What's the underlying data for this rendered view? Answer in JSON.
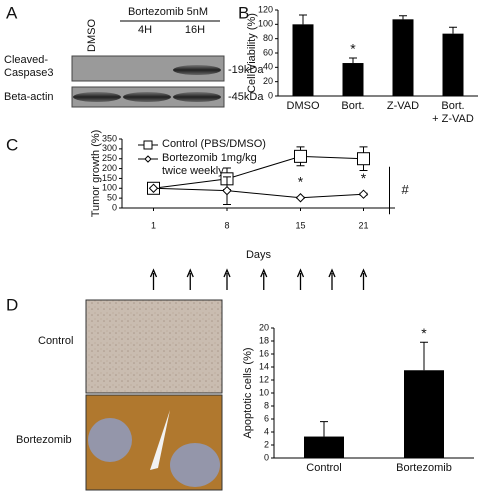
{
  "panel_labels": [
    "A",
    "B",
    "C",
    "D"
  ],
  "blot": {
    "treatment": "Bortezomib 5nM",
    "lanes": [
      "DMSO",
      "4H",
      "16H"
    ],
    "rows": [
      {
        "name": "Cleaved-\nCaspase3",
        "size": "-19kDa"
      },
      {
        "name": "Beta-actin",
        "size": "-45kDa"
      }
    ]
  },
  "micrographs": [
    "Control",
    "Bortezomib"
  ],
  "chart_data": [
    {
      "type": "bar",
      "y_label": "Cell Viability (%)",
      "categories": [
        "DMSO",
        "Bort.",
        "Z-VAD",
        "Bort.\n+ Z-VAD"
      ],
      "values": [
        100,
        46,
        107,
        87
      ],
      "errors": [
        13,
        7,
        5,
        9
      ],
      "significance": [
        null,
        "*",
        null,
        null
      ],
      "color": "#000000",
      "ylim": [
        0,
        120
      ],
      "yticks": [
        0,
        20,
        40,
        60,
        80,
        100,
        120
      ]
    },
    {
      "type": "line",
      "y_label": "Tumor growth (%)",
      "x_label": "Days",
      "x": [
        1,
        8,
        15,
        21
      ],
      "xlim": [
        -2,
        24
      ],
      "xticks": [
        1,
        8,
        15,
        21
      ],
      "ylim": [
        0,
        350
      ],
      "yticks": [
        0,
        50,
        100,
        150,
        200,
        250,
        300,
        350
      ],
      "series": [
        {
          "name": "Control (PBS/DMSO)",
          "color": "#000000",
          "marker": "square",
          "values": [
            100,
            148,
            262,
            250
          ],
          "errors": [
            0,
            55,
            48,
            60
          ]
        },
        {
          "name": "Bortezomib 1mg/kg\ntwice weekly",
          "color": "#000000",
          "marker": "diamond",
          "values": [
            100,
            88,
            52,
            70
          ],
          "errors": [
            0,
            70,
            4,
            5
          ],
          "significance": [
            null,
            null,
            "*",
            "*"
          ]
        }
      ],
      "annotation": "#",
      "dosing_days": [
        1,
        4.5,
        8,
        11.5,
        15,
        18,
        21
      ]
    },
    {
      "type": "bar",
      "y_label": "Apoptotic cells (%)",
      "categories": [
        "Control",
        "Bortezomib"
      ],
      "values": [
        3.3,
        13.5
      ],
      "errors": [
        2.3,
        4.3
      ],
      "significance": [
        null,
        "*"
      ],
      "color": "#000000",
      "ylim": [
        0,
        20
      ],
      "yticks": [
        0,
        2,
        4,
        6,
        8,
        10,
        12,
        14,
        16,
        18,
        20
      ]
    }
  ]
}
